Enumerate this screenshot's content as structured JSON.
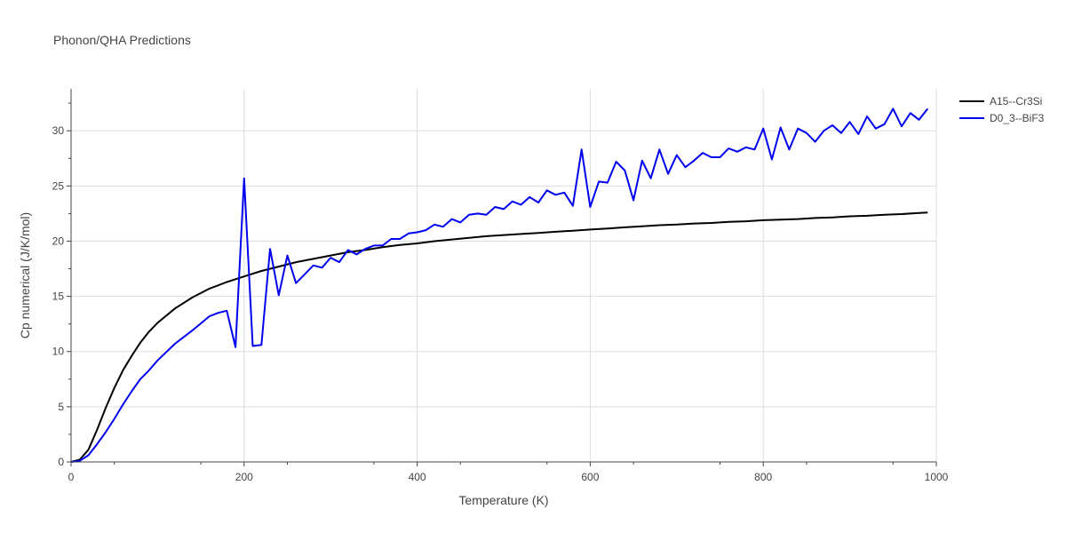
{
  "chart_data": {
    "type": "line",
    "title": "Phonon/QHA Predictions",
    "xlabel": "Temperature (K)",
    "ylabel": "Cp numerical (J/K/mol)",
    "xlim": [
      0,
      1000
    ],
    "ylim": [
      0,
      33.8
    ],
    "xticks": [
      0,
      200,
      400,
      600,
      800,
      1000
    ],
    "yticks": [
      0,
      5,
      10,
      15,
      20,
      25,
      30
    ],
    "grid": true,
    "legend_position": "top-right",
    "series": [
      {
        "name": "A15--Cr3Si",
        "color": "#000000",
        "x": [
          0,
          10,
          20,
          30,
          40,
          50,
          60,
          70,
          80,
          90,
          100,
          120,
          140,
          160,
          180,
          200,
          220,
          240,
          260,
          280,
          300,
          320,
          340,
          360,
          380,
          400,
          420,
          440,
          460,
          480,
          500,
          520,
          540,
          560,
          580,
          600,
          620,
          640,
          660,
          680,
          700,
          720,
          740,
          760,
          780,
          800,
          820,
          840,
          860,
          880,
          900,
          920,
          940,
          960,
          980,
          990
        ],
        "y": [
          0,
          0.2,
          1.1,
          2.9,
          4.9,
          6.7,
          8.3,
          9.6,
          10.8,
          11.8,
          12.6,
          13.9,
          14.9,
          15.7,
          16.3,
          16.8,
          17.3,
          17.7,
          18.1,
          18.4,
          18.7,
          19.0,
          19.2,
          19.45,
          19.65,
          19.8,
          20.0,
          20.15,
          20.3,
          20.45,
          20.55,
          20.65,
          20.75,
          20.85,
          20.95,
          21.05,
          21.15,
          21.25,
          21.35,
          21.45,
          21.5,
          21.6,
          21.65,
          21.75,
          21.8,
          21.9,
          21.95,
          22.0,
          22.1,
          22.15,
          22.25,
          22.3,
          22.4,
          22.45,
          22.55,
          22.6
        ]
      },
      {
        "name": "D0_3--BiF3",
        "color": "#0000ee",
        "x": [
          0,
          10,
          20,
          30,
          40,
          50,
          60,
          70,
          80,
          90,
          100,
          120,
          140,
          160,
          170,
          180,
          190,
          200,
          210,
          220,
          230,
          240,
          250,
          260,
          270,
          280,
          290,
          300,
          310,
          320,
          330,
          340,
          350,
          360,
          370,
          380,
          390,
          400,
          410,
          420,
          430,
          440,
          450,
          460,
          470,
          480,
          490,
          500,
          510,
          520,
          530,
          540,
          550,
          560,
          570,
          580,
          590,
          600,
          610,
          620,
          630,
          640,
          650,
          660,
          670,
          680,
          690,
          700,
          710,
          720,
          730,
          740,
          750,
          760,
          770,
          780,
          790,
          800,
          810,
          820,
          830,
          840,
          850,
          860,
          870,
          880,
          890,
          900,
          910,
          920,
          930,
          940,
          950,
          960,
          970,
          980,
          990
        ],
        "y": [
          0,
          0.1,
          0.6,
          1.6,
          2.7,
          3.9,
          5.2,
          6.4,
          7.5,
          8.3,
          9.2,
          10.7,
          11.9,
          13.2,
          13.5,
          13.7,
          10.4,
          25.7,
          10.5,
          10.6,
          19.3,
          15.1,
          18.7,
          16.2,
          17.0,
          17.8,
          17.6,
          18.5,
          18.1,
          19.2,
          18.8,
          19.3,
          19.6,
          19.6,
          20.2,
          20.2,
          20.7,
          20.8,
          21.0,
          21.5,
          21.3,
          22.0,
          21.7,
          22.4,
          22.5,
          22.4,
          23.1,
          22.9,
          23.6,
          23.3,
          24.0,
          23.5,
          24.6,
          24.2,
          24.4,
          23.2,
          28.3,
          23.1,
          25.4,
          25.3,
          27.2,
          26.4,
          23.7,
          27.3,
          25.7,
          28.3,
          26.1,
          27.8,
          26.7,
          27.3,
          28.0,
          27.6,
          27.6,
          28.4,
          28.1,
          28.5,
          28.3,
          30.2,
          27.4,
          30.3,
          28.3,
          30.2,
          29.8,
          29.0,
          30.0,
          30.5,
          29.8,
          30.8,
          29.7,
          31.3,
          30.2,
          30.6,
          32.0,
          30.4,
          31.6,
          31.0,
          32.0
        ]
      }
    ]
  }
}
